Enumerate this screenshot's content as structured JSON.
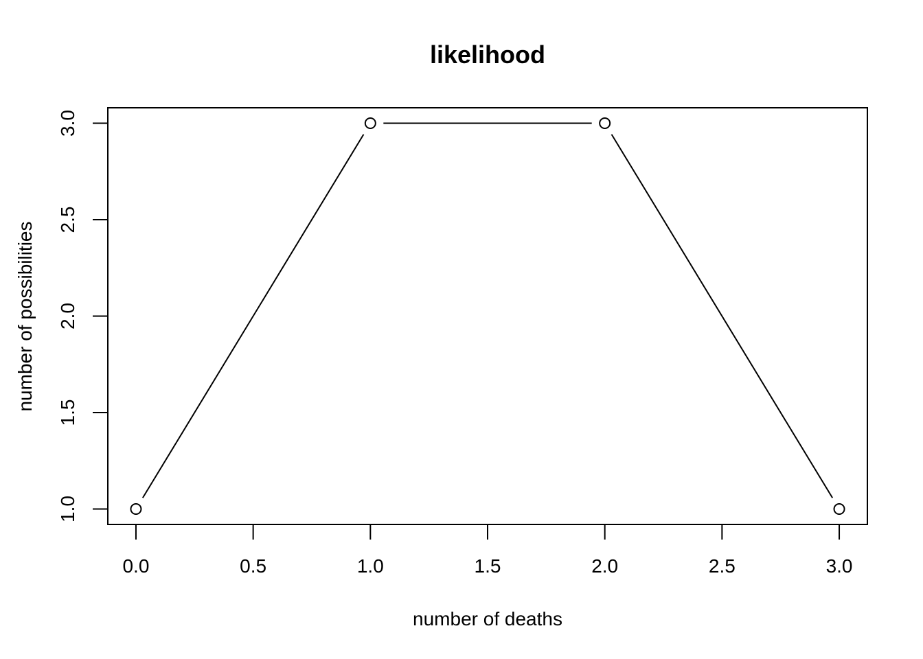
{
  "chart_data": {
    "type": "line",
    "title": "likelihood",
    "xlabel": "number of deaths",
    "ylabel": "number of possibilities",
    "x": [
      0,
      1,
      2,
      3
    ],
    "series": [
      {
        "values": [
          1,
          3,
          3,
          1
        ]
      }
    ],
    "xlim": [
      -0.12,
      3.12
    ],
    "ylim": [
      0.92,
      3.08
    ],
    "xticks": [
      0,
      0.5,
      1,
      1.5,
      2,
      2.5,
      3
    ],
    "xtick_labels": [
      "0.0",
      "0.5",
      "1.0",
      "1.5",
      "2.0",
      "2.5",
      "3.0"
    ],
    "yticks": [
      1,
      1.5,
      2,
      2.5,
      3
    ],
    "ytick_labels": [
      "1.0",
      "1.5",
      "2.0",
      "2.5",
      "3.0"
    ],
    "grid": false,
    "marker": "open-circle",
    "line_color": "#000000"
  }
}
